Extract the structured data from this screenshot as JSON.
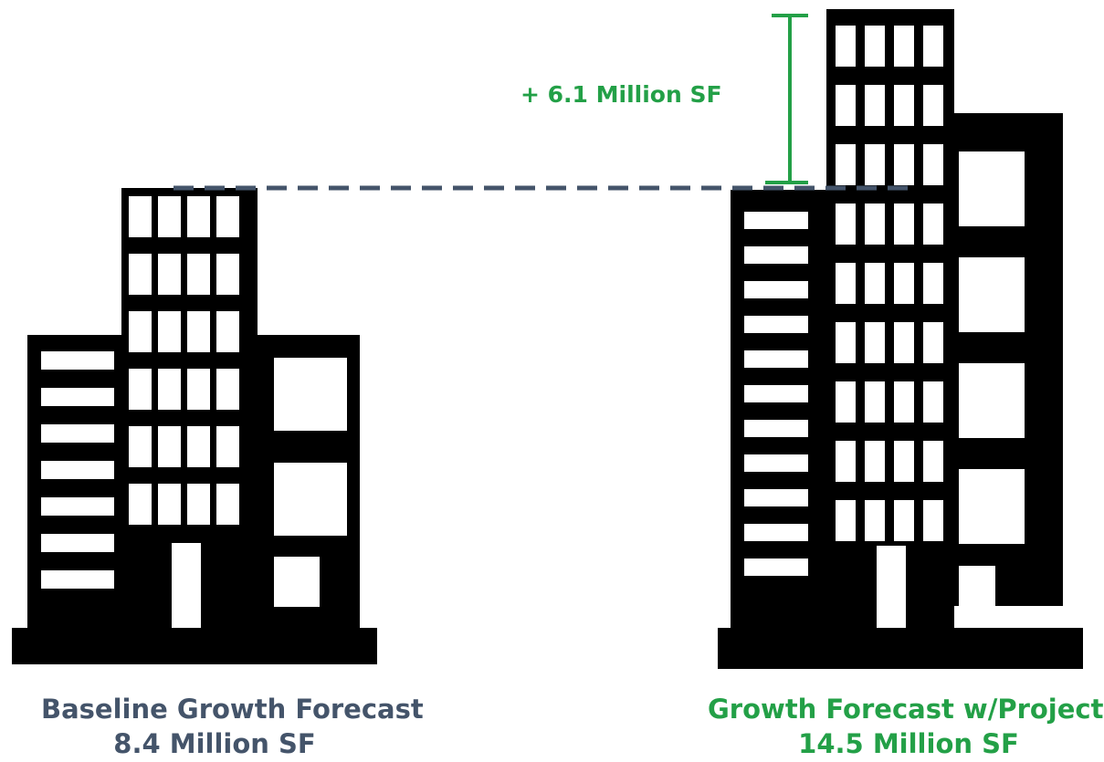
{
  "colors": {
    "building": "#000000",
    "baseline_text": "#44546a",
    "projects_text": "#23a047",
    "reference_line": "#44546a",
    "delta_bracket": "#23a047"
  },
  "delta": {
    "label": "+ 6.1 Million SF",
    "value_million_sf": 6.1
  },
  "baseline": {
    "title": "Baseline Growth Forecast",
    "value_label": "8.4 Million SF",
    "value_million_sf": 8.4,
    "icon": "office-buildings-icon"
  },
  "with_projects": {
    "title": "Growth Forecast w/Projects",
    "value_label": "14.5 Million SF",
    "value_million_sf": 14.5,
    "icon": "office-buildings-icon"
  }
}
